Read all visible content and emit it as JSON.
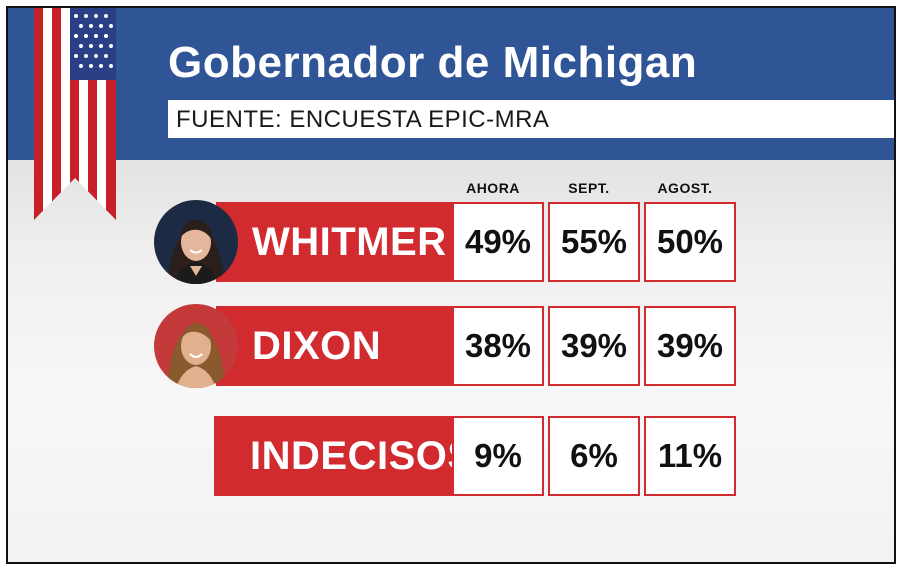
{
  "title": "Gobernador de Michigan",
  "subtitle": "FUENTE: ENCUESTA EPIC-MRA",
  "colors": {
    "header_blue": "#2f5597",
    "accent_red": "#d12a2f",
    "cell_bg": "#ffffff"
  },
  "icons": {
    "flag": "us-flag-ribbon-icon",
    "candidate_photos": [
      "whitmer-portrait",
      "dixon-portrait"
    ]
  },
  "chart_data": {
    "type": "table",
    "title": "Gobernador de Michigan",
    "subtitle": "FUENTE: ENCUESTA EPIC-MRA",
    "columns": [
      "AHORA",
      "SEPT.",
      "AGOST."
    ],
    "rows": [
      {
        "name": "WHITMER",
        "values": [
          "49%",
          "55%",
          "50%"
        ]
      },
      {
        "name": "DIXON",
        "values": [
          "38%",
          "39%",
          "39%"
        ]
      },
      {
        "name": "INDECISOS",
        "values": [
          "9%",
          "6%",
          "11%"
        ]
      }
    ]
  }
}
